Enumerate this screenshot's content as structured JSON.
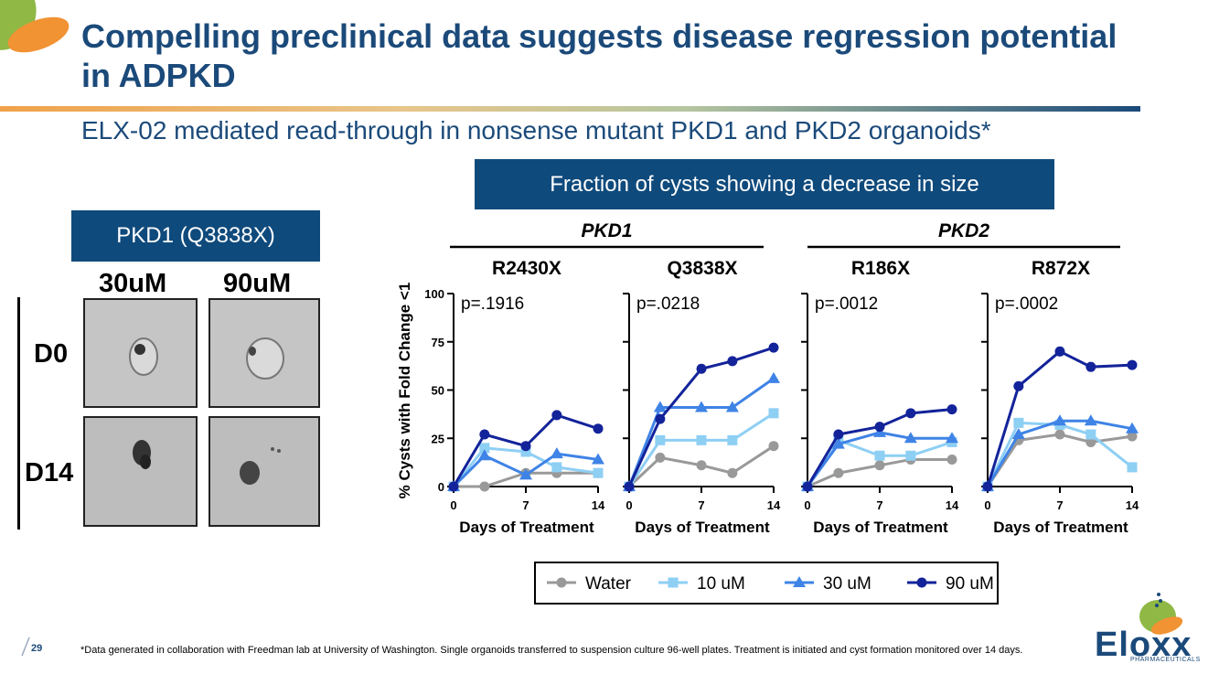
{
  "header": {
    "title": "Compelling preclinical data suggests disease regression potential in ADPKD",
    "subtitle": "ELX-02 mediated read-through in nonsense mutant PKD1 and PKD2 organoids*"
  },
  "chart_banner": "Fraction of cysts showing a decrease in size",
  "left_panel": {
    "label": "PKD1 (Q3838X)",
    "concentrations": [
      "30uM",
      "90uM"
    ],
    "rows": [
      "D0",
      "D14"
    ]
  },
  "colors": {
    "navy": "#0f4a7c",
    "title_blue": "#1b4a7a",
    "water": "#999999",
    "uM10": "#8ecff4",
    "uM30": "#3f83e6",
    "uM90": "#13239a"
  },
  "chart_data": {
    "type": "line",
    "groups": [
      "PKD1",
      "PKD2"
    ],
    "ylabel": "% Cysts with Fold Change <1",
    "xlabel": "Days of Treatment",
    "ylim": [
      0,
      100
    ],
    "yticks": [
      "0",
      "25",
      "50",
      "75",
      "100"
    ],
    "xticks": [
      "0",
      "7",
      "14"
    ],
    "x": [
      0,
      3,
      7,
      10,
      14
    ],
    "legend": [
      "Water",
      "10 uM",
      "30 uM",
      "90 uM"
    ],
    "panels": [
      {
        "group": "PKD1",
        "title": "R2430X",
        "pvalue": "p=.1916",
        "series": [
          {
            "name": "Water",
            "values": [
              0,
              0,
              7,
              7,
              7
            ]
          },
          {
            "name": "10 uM",
            "values": [
              0,
              20,
              18,
              10,
              7
            ]
          },
          {
            "name": "30 uM",
            "values": [
              0,
              16,
              6,
              17,
              14
            ]
          },
          {
            "name": "90 uM",
            "values": [
              0,
              27,
              21,
              37,
              30
            ]
          }
        ]
      },
      {
        "group": "PKD1",
        "title": "Q3838X",
        "pvalue": "p=.0218",
        "series": [
          {
            "name": "Water",
            "values": [
              0,
              15,
              11,
              7,
              21
            ]
          },
          {
            "name": "10 uM",
            "values": [
              0,
              24,
              24,
              24,
              38
            ]
          },
          {
            "name": "30 uM",
            "values": [
              0,
              41,
              41,
              41,
              56
            ]
          },
          {
            "name": "90 uM",
            "values": [
              0,
              35,
              61,
              65,
              72
            ]
          }
        ]
      },
      {
        "group": "PKD2",
        "title": "R186X",
        "pvalue": "p=.0012",
        "series": [
          {
            "name": "Water",
            "values": [
              0,
              7,
              11,
              14,
              14
            ]
          },
          {
            "name": "10 uM",
            "values": [
              0,
              24,
              16,
              16,
              23
            ]
          },
          {
            "name": "30 uM",
            "values": [
              0,
              22,
              28,
              25,
              25
            ]
          },
          {
            "name": "90 uM",
            "values": [
              0,
              27,
              31,
              38,
              40
            ]
          }
        ]
      },
      {
        "group": "PKD2",
        "title": "R872X",
        "pvalue": "p=.0002",
        "series": [
          {
            "name": "Water",
            "values": [
              0,
              24,
              27,
              23,
              26
            ]
          },
          {
            "name": "10 uM",
            "values": [
              0,
              33,
              32,
              27,
              10
            ]
          },
          {
            "name": "30 uM",
            "values": [
              0,
              27,
              34,
              34,
              30
            ]
          },
          {
            "name": "90 uM",
            "values": [
              0,
              52,
              70,
              62,
              63
            ]
          }
        ]
      }
    ]
  },
  "footer": {
    "page_number": "29",
    "footnote": "*Data generated in collaboration with Freedman lab at University of Washington. Single organoids transferred to suspension culture 96-well plates. Treatment is initiated and cyst formation monitored over 14 days.",
    "logo_text": "Eloxx",
    "logo_sub": "PHARMACEUTICALS"
  }
}
